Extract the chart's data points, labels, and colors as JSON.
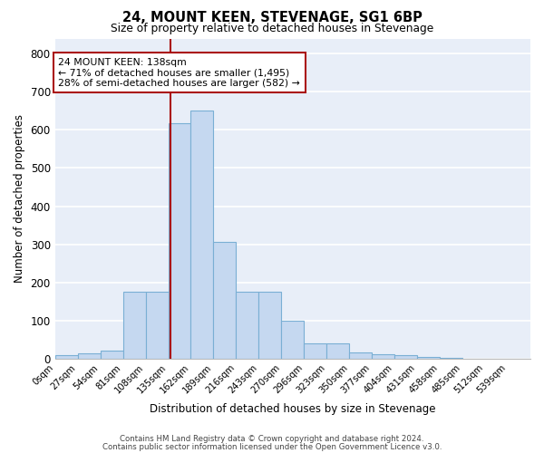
{
  "title1": "24, MOUNT KEEN, STEVENAGE, SG1 6BP",
  "title2": "Size of property relative to detached houses in Stevenage",
  "xlabel": "Distribution of detached houses by size in Stevenage",
  "ylabel": "Number of detached properties",
  "bar_labels": [
    "0sqm",
    "27sqm",
    "54sqm",
    "81sqm",
    "108sqm",
    "135sqm",
    "162sqm",
    "189sqm",
    "216sqm",
    "243sqm",
    "270sqm",
    "296sqm",
    "323sqm",
    "350sqm",
    "377sqm",
    "404sqm",
    "431sqm",
    "458sqm",
    "485sqm",
    "512sqm",
    "539sqm"
  ],
  "bar_values": [
    8,
    13,
    20,
    175,
    175,
    617,
    650,
    305,
    175,
    175,
    100,
    40,
    40,
    15,
    10,
    8,
    3,
    2,
    0,
    0,
    0
  ],
  "bar_color": "#c5d8f0",
  "bar_edge_color": "#7aafd4",
  "bg_color": "#e8eef8",
  "grid_color": "#ffffff",
  "vline_color": "#aa1111",
  "annotation_text": "24 MOUNT KEEN: 138sqm\n← 71% of detached houses are smaller (1,495)\n28% of semi-detached houses are larger (582) →",
  "annotation_box_color": "#ffffff",
  "annotation_box_edge": "#aa1111",
  "ylim": [
    0,
    840
  ],
  "bin_width": 27,
  "footnote1": "Contains HM Land Registry data © Crown copyright and database right 2024.",
  "footnote2": "Contains public sector information licensed under the Open Government Licence v3.0."
}
